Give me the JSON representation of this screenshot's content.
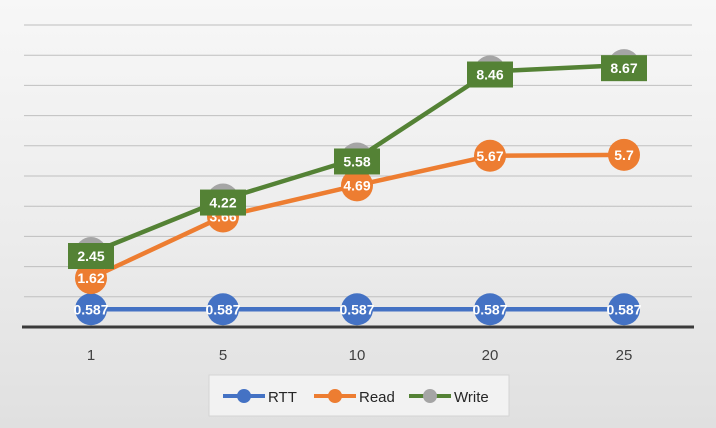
{
  "chart_data": {
    "type": "line",
    "title": "",
    "xlabel": "",
    "ylabel": "",
    "categories": [
      "1",
      "5",
      "10",
      "20",
      "25"
    ],
    "ylim": [
      0,
      10
    ],
    "grid": true,
    "legend_position": "bottom",
    "series": [
      {
        "name": "RTT",
        "values": [
          0.587,
          0.587,
          0.587,
          0.587,
          0.587
        ],
        "labels": [
          "0.587",
          "0.587",
          "0.587",
          "0.587",
          "0.587"
        ],
        "color": "#4472c4",
        "label_style": "circle"
      },
      {
        "name": "Read",
        "values": [
          1.62,
          3.66,
          4.69,
          5.67,
          5.7
        ],
        "labels": [
          "1.62",
          "3.66",
          "4.69",
          "5.67",
          "5.7"
        ],
        "color": "#ed7d31",
        "label_style": "circle"
      },
      {
        "name": "Write",
        "values": [
          2.45,
          4.22,
          5.58,
          8.46,
          8.67
        ],
        "labels": [
          "2.45",
          "4.22",
          "5.58",
          "8.46",
          "8.67"
        ],
        "color": "#548235",
        "marker_color": "#a5a5a5",
        "label_style": "box"
      }
    ]
  }
}
